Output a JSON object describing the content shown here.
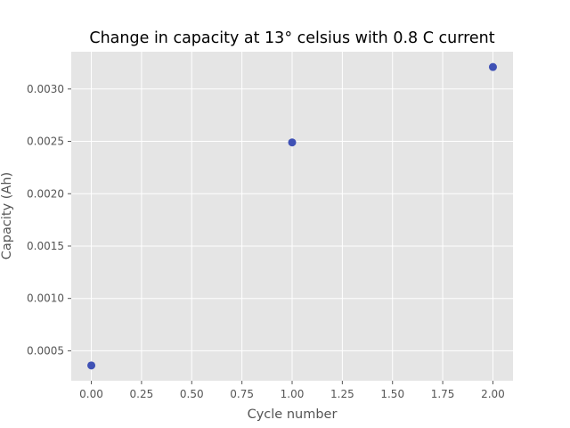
{
  "chart_data": {
    "type": "scatter",
    "title": "Change in capacity at 13° celsius with 0.8 C current",
    "xlabel": "Cycle number",
    "ylabel": "Capacity (Ah)",
    "x": [
      0,
      1,
      2
    ],
    "y": [
      0.00036,
      0.00249,
      0.00321
    ],
    "xlim": [
      -0.1,
      2.1
    ],
    "ylim": [
      0.000214,
      0.003356
    ],
    "xticks": [
      0.0,
      0.25,
      0.5,
      0.75,
      1.0,
      1.25,
      1.5,
      1.75,
      2.0
    ],
    "xtick_labels": [
      "0.00",
      "0.25",
      "0.50",
      "0.75",
      "1.00",
      "1.25",
      "1.50",
      "1.75",
      "2.00"
    ],
    "yticks": [
      0.0005,
      0.001,
      0.0015,
      0.002,
      0.0025,
      0.003
    ],
    "ytick_labels": [
      "0.0005",
      "0.0010",
      "0.0015",
      "0.0020",
      "0.0025",
      "0.0030"
    ],
    "grid": true,
    "style": "ggplot",
    "colors": {
      "plot_background": "#E5E5E5",
      "grid": "#FFFFFF",
      "marker": "#3F51B5",
      "text": "#555555",
      "title": "#000000"
    }
  }
}
